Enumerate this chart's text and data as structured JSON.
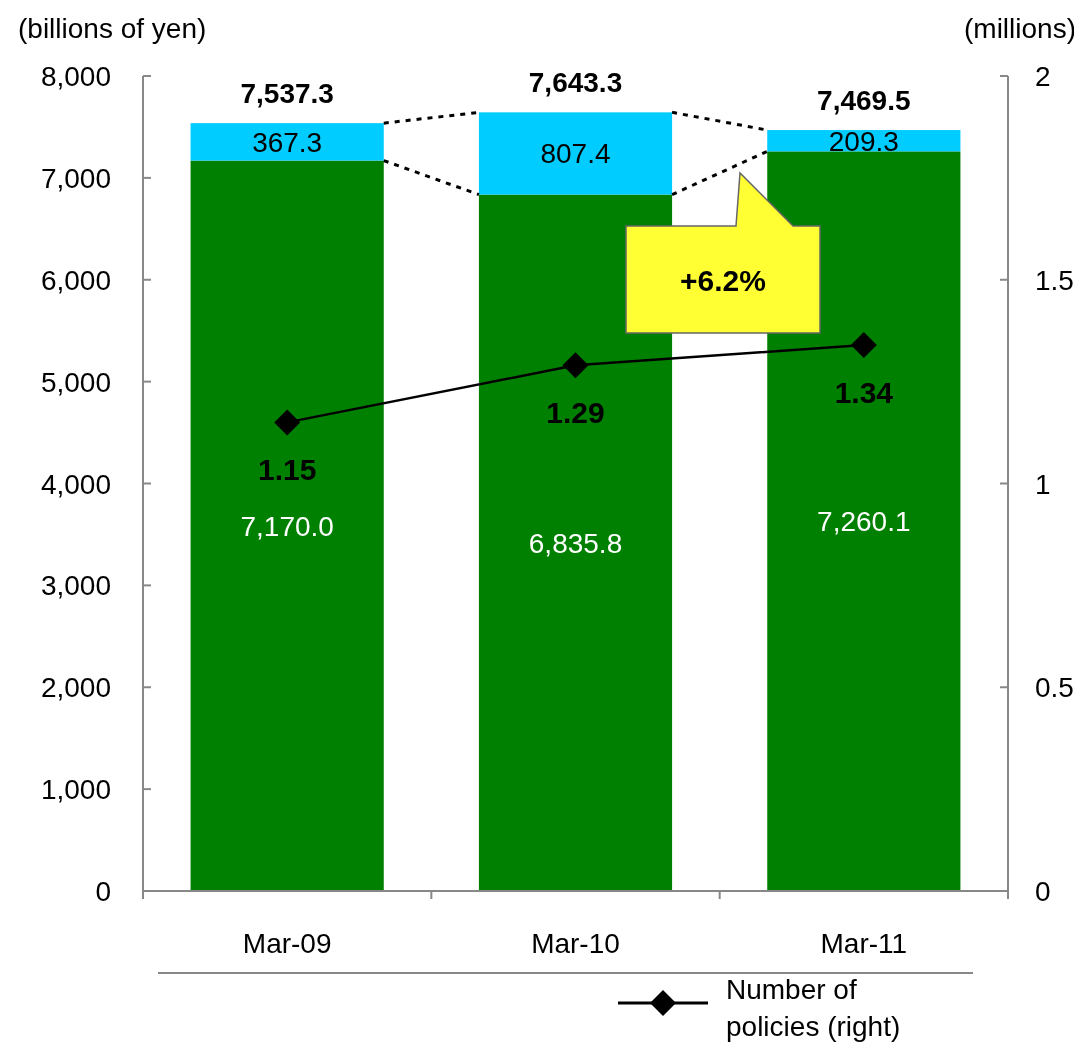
{
  "chart_data": {
    "type": "bar",
    "stacked": true,
    "categories": [
      "Mar-09",
      "Mar-10",
      "Mar-11"
    ],
    "ylabel": "(billions of yen)",
    "y2label": "(millions)",
    "ylim": [
      0,
      8000
    ],
    "yticks": [
      {
        "value": 0,
        "label": "0"
      },
      {
        "value": 1000,
        "label": "1,000"
      },
      {
        "value": 2000,
        "label": "2,000"
      },
      {
        "value": 3000,
        "label": "3,000"
      },
      {
        "value": 4000,
        "label": "4,000"
      },
      {
        "value": 5000,
        "label": "5,000"
      },
      {
        "value": 6000,
        "label": "6,000"
      },
      {
        "value": 7000,
        "label": "7,000"
      },
      {
        "value": 8000,
        "label": "8,000"
      }
    ],
    "y2lim": [
      0,
      2
    ],
    "y2ticks": [
      0,
      0.5,
      1,
      1.5,
      2
    ],
    "series": [
      {
        "color": "#008000",
        "values": [
          7170.0,
          6835.8,
          7260.1
        ],
        "value_labels": [
          "7,170.0",
          "6,835.8",
          "7,260.1"
        ]
      },
      {
        "color": "#00ccff",
        "values": [
          367.3,
          807.4,
          209.3
        ],
        "value_labels": [
          "367.3",
          "807.4",
          "209.3"
        ]
      },
      {
        "name": "Number of policies (right)",
        "type": "line",
        "axis": "y2",
        "color": "#000000",
        "marker": "diamond",
        "values": [
          1.15,
          1.29,
          1.34
        ],
        "value_labels": [
          "1.15",
          "1.29",
          "1.34"
        ]
      }
    ],
    "totals": [
      "7,537.3",
      "7,643.3",
      "7,469.5"
    ],
    "annotations": [
      "+6.2%"
    ],
    "legend": "bottom",
    "grid": false
  }
}
